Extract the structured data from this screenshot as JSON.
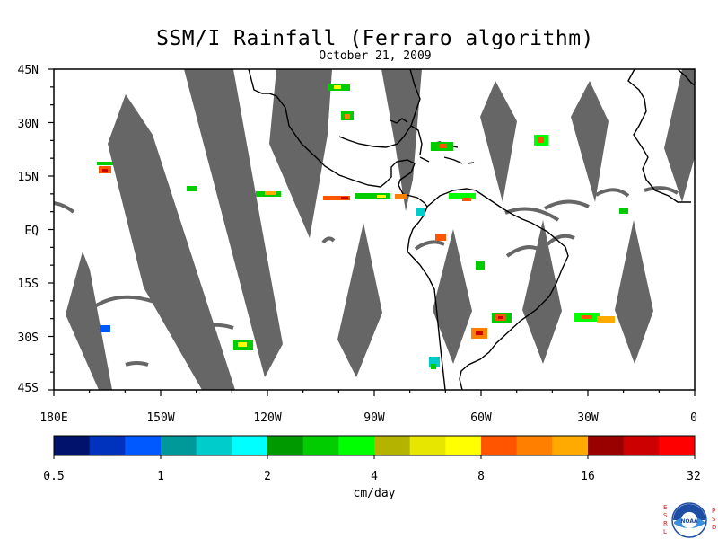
{
  "title": "SSM/I Rainfall (Ferraro algorithm)",
  "date": "October 21, 2009",
  "lat_labels": [
    "45N",
    "30N",
    "15N",
    "EQ",
    "15S",
    "30S",
    "45S"
  ],
  "lon_labels": [
    "180E",
    "150W",
    "120W",
    "90W",
    "60W",
    "30W",
    "0"
  ],
  "colorbar": {
    "units": "cm/day",
    "tick_labels": [
      "0.5",
      "1",
      "2",
      "4",
      "8",
      "16",
      "32"
    ],
    "colors": [
      "#00126b",
      "#0033bd",
      "#0059ff",
      "#009999",
      "#00cccc",
      "#00ffff",
      "#009900",
      "#00cc00",
      "#00ff00",
      "#b3b300",
      "#e6e600",
      "#ffff00",
      "#ff5500",
      "#ff8000",
      "#ffaa00",
      "#990000",
      "#cc0000",
      "#ff0000"
    ]
  },
  "logo": {
    "left_letters": "ESRL",
    "right_letters": "PSD",
    "text": "NOAA"
  },
  "colors": {
    "no_data": "#666666",
    "coastline": "#000000",
    "background": "#ffffff"
  }
}
